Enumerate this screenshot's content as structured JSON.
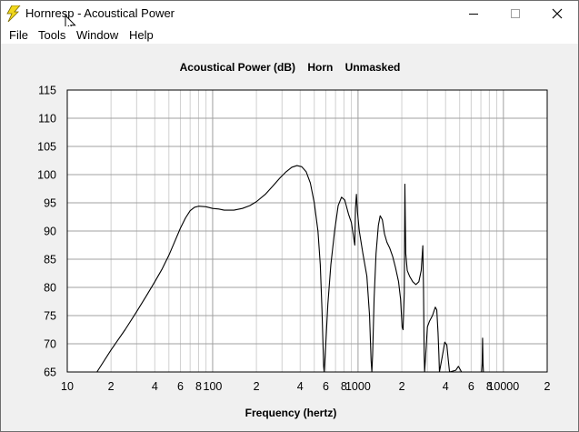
{
  "window": {
    "title": "Hornresp - Acoustical Power"
  },
  "menu": {
    "file": "File",
    "tools": "Tools",
    "window": "Window",
    "help": "Help"
  },
  "chart_data": {
    "type": "line",
    "title": "Acoustical Power (dB)    Horn    Unmasked",
    "xlabel": "Frequency (hertz)",
    "ylabel": "",
    "x_scale": "log",
    "xlim": [
      10,
      20000
    ],
    "ylim": [
      65,
      115
    ],
    "y_ticks": [
      "115",
      "110",
      "105",
      "100",
      "95",
      "90",
      "85",
      "80",
      "75",
      "70",
      "65"
    ],
    "x_ticks": [
      {
        "value": 10,
        "label": "10"
      },
      {
        "value": 20,
        "label": "2"
      },
      {
        "value": 40,
        "label": "4"
      },
      {
        "value": 60,
        "label": "6"
      },
      {
        "value": 80,
        "label": "8"
      },
      {
        "value": 100,
        "label": "100"
      },
      {
        "value": 200,
        "label": "2"
      },
      {
        "value": 400,
        "label": "4"
      },
      {
        "value": 600,
        "label": "6"
      },
      {
        "value": 800,
        "label": "8"
      },
      {
        "value": 1000,
        "label": "1000"
      },
      {
        "value": 2000,
        "label": "2"
      },
      {
        "value": 4000,
        "label": "4"
      },
      {
        "value": 6000,
        "label": "6"
      },
      {
        "value": 8000,
        "label": "8"
      },
      {
        "value": 10000,
        "label": "10000"
      },
      {
        "value": 20000,
        "label": "2"
      }
    ],
    "grid": true,
    "line_color": "#000000",
    "series": [
      {
        "points": [
          [
            16,
            65
          ],
          [
            20,
            68.9
          ],
          [
            25,
            72.5
          ],
          [
            30,
            75.7
          ],
          [
            35,
            78.5
          ],
          [
            40,
            81
          ],
          [
            45,
            83.3
          ],
          [
            50,
            85.7
          ],
          [
            55,
            88.2
          ],
          [
            60,
            90.5
          ],
          [
            65,
            92.3
          ],
          [
            70,
            93.6
          ],
          [
            75,
            94.2
          ],
          [
            80,
            94.4
          ],
          [
            90,
            94.3
          ],
          [
            100,
            94
          ],
          [
            110,
            93.9
          ],
          [
            120,
            93.7
          ],
          [
            140,
            93.7
          ],
          [
            160,
            94
          ],
          [
            180,
            94.5
          ],
          [
            200,
            95.2
          ],
          [
            230,
            96.5
          ],
          [
            260,
            98
          ],
          [
            290,
            99.4
          ],
          [
            320,
            100.5
          ],
          [
            350,
            101.3
          ],
          [
            380,
            101.6
          ],
          [
            410,
            101.4
          ],
          [
            440,
            100.5
          ],
          [
            470,
            98.5
          ],
          [
            500,
            95
          ],
          [
            530,
            90
          ],
          [
            550,
            84
          ],
          [
            565,
            76
          ],
          [
            580,
            66
          ],
          [
            585,
            65
          ],
          [
            600,
            70
          ],
          [
            620,
            77
          ],
          [
            650,
            84
          ],
          [
            690,
            90
          ],
          [
            730,
            94.5
          ],
          [
            770,
            96
          ],
          [
            810,
            95.5
          ],
          [
            860,
            93
          ],
          [
            900,
            91.5
          ],
          [
            950,
            87.5
          ],
          [
            960,
            94
          ],
          [
            975,
            96.5
          ],
          [
            990,
            93.5
          ],
          [
            1020,
            90
          ],
          [
            1080,
            86
          ],
          [
            1150,
            82
          ],
          [
            1200,
            75
          ],
          [
            1230,
            67
          ],
          [
            1245,
            65
          ],
          [
            1260,
            68
          ],
          [
            1290,
            78
          ],
          [
            1330,
            86
          ],
          [
            1380,
            91
          ],
          [
            1420,
            92.7
          ],
          [
            1470,
            92
          ],
          [
            1520,
            89.5
          ],
          [
            1580,
            88
          ],
          [
            1650,
            87
          ],
          [
            1730,
            85.5
          ],
          [
            1810,
            83.5
          ],
          [
            1900,
            81
          ],
          [
            1960,
            78
          ],
          [
            2010,
            73
          ],
          [
            2040,
            72.5
          ],
          [
            2080,
            79
          ],
          [
            2100,
            98.3
          ],
          [
            2115,
            92
          ],
          [
            2130,
            86
          ],
          [
            2180,
            83
          ],
          [
            2260,
            82
          ],
          [
            2380,
            81
          ],
          [
            2500,
            80.5
          ],
          [
            2620,
            81
          ],
          [
            2720,
            83
          ],
          [
            2790,
            87.4
          ],
          [
            2820,
            80
          ],
          [
            2850,
            68
          ],
          [
            2870,
            65
          ],
          [
            2920,
            68
          ],
          [
            3000,
            73
          ],
          [
            3100,
            74
          ],
          [
            3250,
            75
          ],
          [
            3400,
            76.5
          ],
          [
            3480,
            76
          ],
          [
            3550,
            72
          ],
          [
            3600,
            68
          ],
          [
            3630,
            65
          ],
          [
            3800,
            67.8
          ],
          [
            3950,
            70.3
          ],
          [
            4080,
            69.8
          ],
          [
            4180,
            67
          ],
          [
            4260,
            65
          ],
          [
            4700,
            65.3
          ],
          [
            4900,
            66
          ],
          [
            5050,
            65.4
          ],
          [
            5150,
            65
          ]
        ]
      },
      {
        "points": [
          [
            7080,
            65
          ],
          [
            7140,
            66.5
          ],
          [
            7190,
            71
          ],
          [
            7240,
            66.5
          ],
          [
            7290,
            65
          ]
        ]
      }
    ]
  }
}
